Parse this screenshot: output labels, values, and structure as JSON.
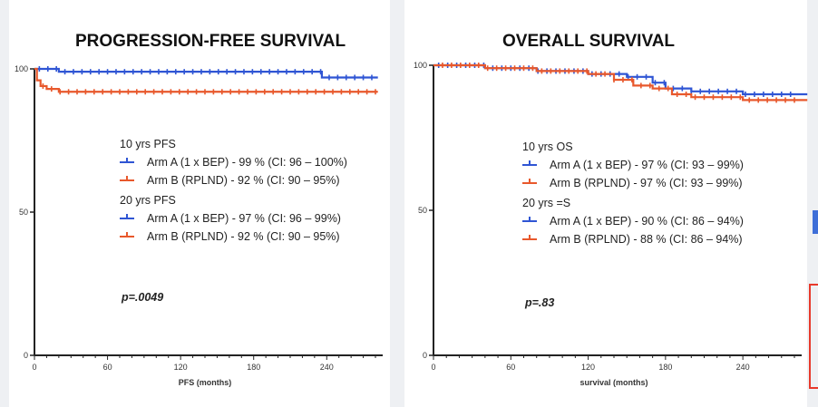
{
  "colors": {
    "arm_a": "#2f55d4",
    "arm_b": "#e8582c",
    "axis": "#222222",
    "accent_red": "#e8392b"
  },
  "chart_data": [
    {
      "type": "line",
      "title": "PROGRESSION-FREE SURVIVAL",
      "xlabel": "PFS (months)",
      "ylabel": "",
      "xlim": [
        0,
        280
      ],
      "ylim": [
        0,
        100
      ],
      "x_ticks": [
        "0",
        "60",
        "120",
        "180",
        "240"
      ],
      "y_ticks": [
        "0",
        "50",
        "100"
      ],
      "grid": false,
      "series": [
        {
          "name": "Arm A (1 x BEP)",
          "x": [
            0,
            20,
            60,
            120,
            180,
            235,
            236,
            282
          ],
          "y": [
            100,
            99,
            99,
            99,
            99,
            99,
            97,
            97
          ]
        },
        {
          "name": "Arm B (RPLND)",
          "x": [
            0,
            2,
            5,
            10,
            20,
            50,
            282
          ],
          "y": [
            100,
            96,
            94,
            93,
            92,
            92,
            92
          ]
        }
      ],
      "legend": [
        {
          "heading": "10 yrs PFS",
          "items": [
            {
              "series": "Arm A (1 x BEP)",
              "text": "Arm A (1 x BEP) - 99 % (CI: 96 – 100%)"
            },
            {
              "series": "Arm B (RPLND)",
              "text": "Arm B (RPLND) - 92 % (CI: 90 – 95%)"
            }
          ]
        },
        {
          "heading": "20 yrs PFS",
          "items": [
            {
              "series": "Arm A (1 x BEP)",
              "text": "Arm A (1 x BEP) - 97 % (CI: 96 – 99%)"
            },
            {
              "series": "Arm B (RPLND)",
              "text": "Arm B (RPLND) - 92 % (CI: 90 – 95%)"
            }
          ]
        }
      ],
      "annotation": "p=.0049"
    },
    {
      "type": "line",
      "title": "OVERALL SURVIVAL",
      "xlabel": "survival (months)",
      "ylabel": "",
      "xlim": [
        0,
        280
      ],
      "ylim": [
        0,
        100
      ],
      "x_ticks": [
        "0",
        "60",
        "120",
        "180",
        "240"
      ],
      "y_ticks": [
        "0",
        "50",
        "100"
      ],
      "grid": false,
      "series": [
        {
          "name": "Arm A (1 x BEP)",
          "x": [
            0,
            40,
            80,
            120,
            150,
            170,
            180,
            200,
            240,
            290
          ],
          "y": [
            100,
            99,
            98,
            97,
            96,
            94,
            92,
            91,
            90,
            90
          ]
        },
        {
          "name": "Arm B (RPLND)",
          "x": [
            0,
            40,
            80,
            120,
            140,
            155,
            170,
            185,
            200,
            240,
            290
          ],
          "y": [
            100,
            99,
            98,
            97,
            95,
            93,
            92,
            90,
            89,
            88,
            88
          ]
        }
      ],
      "legend": [
        {
          "heading": "10 yrs OS",
          "items": [
            {
              "series": "Arm A (1 x BEP)",
              "text": "Arm A (1 x BEP) - 97 % (CI: 93 – 99%)"
            },
            {
              "series": "Arm B (RPLND)",
              "text": "Arm B (RPLND) - 97 % (CI: 93 – 99%)"
            }
          ]
        },
        {
          "heading": "20 yrs =S",
          "items": [
            {
              "series": "Arm A (1 x BEP)",
              "text": "Arm A (1 x BEP) - 90 % (CI: 86 – 94%)"
            },
            {
              "series": "Arm B (RPLND)",
              "text": "Arm B (RPLND) - 88 % (CI: 86 – 94%)"
            }
          ]
        }
      ],
      "annotation": "p=.83"
    }
  ]
}
